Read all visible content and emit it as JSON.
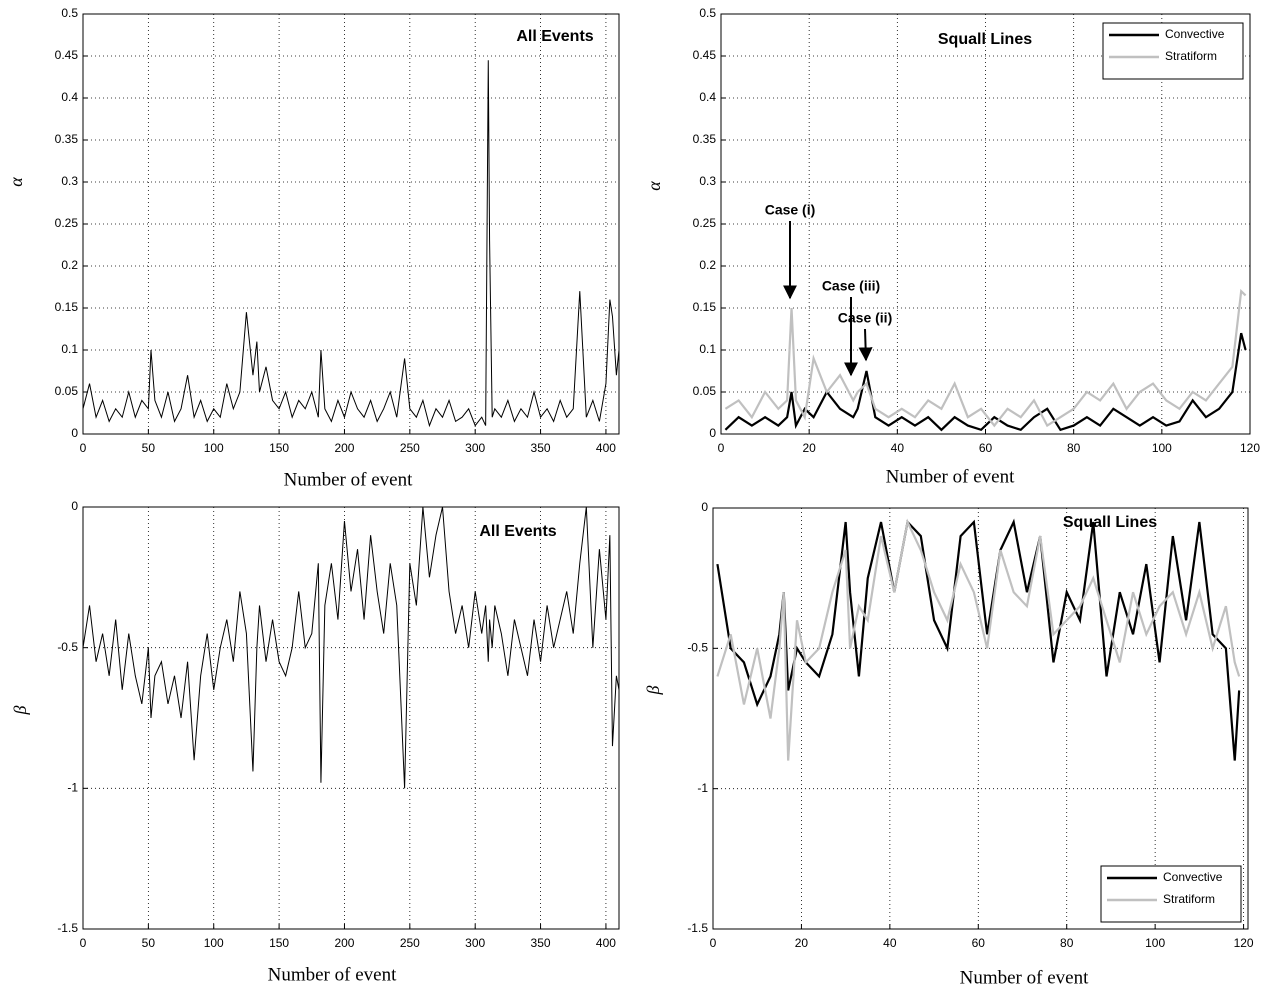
{
  "chart_data": [
    {
      "type": "line",
      "title": "All Events",
      "xlabel": "Number of event",
      "ylabel": "α",
      "color": "#000000",
      "x": [
        0,
        5,
        10,
        15,
        20,
        25,
        30,
        35,
        40,
        45,
        50,
        52,
        55,
        60,
        65,
        70,
        75,
        80,
        85,
        90,
        95,
        100,
        105,
        110,
        115,
        120,
        125,
        130,
        133,
        135,
        140,
        145,
        150,
        155,
        160,
        165,
        170,
        175,
        180,
        182,
        185,
        190,
        195,
        200,
        205,
        210,
        215,
        220,
        225,
        230,
        235,
        240,
        246,
        250,
        255,
        260,
        265,
        270,
        275,
        280,
        285,
        290,
        295,
        300,
        305,
        308,
        310,
        311,
        313,
        315,
        320,
        325,
        330,
        335,
        340,
        345,
        350,
        355,
        360,
        365,
        370,
        375,
        380,
        385,
        390,
        395,
        400,
        403,
        405,
        408,
        410
      ],
      "values": [
        0.03,
        0.06,
        0.02,
        0.04,
        0.015,
        0.03,
        0.02,
        0.05,
        0.02,
        0.04,
        0.03,
        0.1,
        0.04,
        0.02,
        0.05,
        0.015,
        0.03,
        0.07,
        0.02,
        0.04,
        0.015,
        0.03,
        0.02,
        0.06,
        0.03,
        0.05,
        0.145,
        0.07,
        0.11,
        0.05,
        0.08,
        0.04,
        0.03,
        0.05,
        0.02,
        0.04,
        0.03,
        0.05,
        0.02,
        0.1,
        0.03,
        0.015,
        0.04,
        0.02,
        0.05,
        0.03,
        0.02,
        0.04,
        0.015,
        0.03,
        0.05,
        0.02,
        0.09,
        0.03,
        0.02,
        0.04,
        0.01,
        0.03,
        0.02,
        0.04,
        0.015,
        0.02,
        0.03,
        0.01,
        0.02,
        0.01,
        0.445,
        0.23,
        0.02,
        0.03,
        0.02,
        0.04,
        0.015,
        0.03,
        0.02,
        0.05,
        0.02,
        0.03,
        0.015,
        0.04,
        0.02,
        0.03,
        0.17,
        0.02,
        0.04,
        0.015,
        0.06,
        0.16,
        0.14,
        0.07,
        0.1
      ],
      "xlim": [
        0,
        410
      ],
      "ylim": [
        0,
        0.5
      ],
      "xticks": [
        0,
        50,
        100,
        150,
        200,
        250,
        300,
        350,
        400
      ],
      "yticks": [
        0,
        0.05,
        0.1,
        0.15,
        0.2,
        0.25,
        0.3,
        0.35,
        0.4,
        0.45,
        0.5
      ],
      "grid": true
    },
    {
      "type": "line",
      "title": "Squall Lines",
      "xlabel": "Number of event",
      "ylabel": "α",
      "legend": "upper right",
      "annotations": [
        "Case (i)",
        "Case (iii)",
        "Case (ii)"
      ],
      "x": [
        1,
        4,
        7,
        10,
        13,
        15,
        16,
        17,
        19,
        21,
        24,
        27,
        30,
        31,
        33,
        35,
        38,
        41,
        44,
        47,
        50,
        53,
        56,
        59,
        62,
        65,
        68,
        71,
        74,
        77,
        80,
        83,
        86,
        89,
        92,
        95,
        98,
        101,
        104,
        107,
        110,
        113,
        116,
        118,
        119
      ],
      "series": [
        {
          "name": "Convective",
          "color": "#000000",
          "values": [
            0.005,
            0.02,
            0.01,
            0.02,
            0.01,
            0.02,
            0.05,
            0.01,
            0.03,
            0.02,
            0.05,
            0.03,
            0.02,
            0.03,
            0.075,
            0.02,
            0.01,
            0.02,
            0.01,
            0.02,
            0.005,
            0.02,
            0.01,
            0.005,
            0.02,
            0.01,
            0.005,
            0.02,
            0.03,
            0.005,
            0.01,
            0.02,
            0.01,
            0.03,
            0.02,
            0.01,
            0.02,
            0.01,
            0.015,
            0.04,
            0.02,
            0.03,
            0.05,
            0.12,
            0.1
          ]
        },
        {
          "name": "Stratiform",
          "color": "#c0c0c0",
          "values": [
            0.03,
            0.04,
            0.02,
            0.05,
            0.03,
            0.04,
            0.15,
            0.04,
            0.02,
            0.09,
            0.05,
            0.07,
            0.04,
            0.05,
            0.06,
            0.03,
            0.02,
            0.03,
            0.02,
            0.04,
            0.03,
            0.06,
            0.02,
            0.03,
            0.01,
            0.03,
            0.02,
            0.04,
            0.01,
            0.02,
            0.03,
            0.05,
            0.04,
            0.06,
            0.03,
            0.05,
            0.06,
            0.04,
            0.03,
            0.05,
            0.04,
            0.06,
            0.08,
            0.17,
            0.165
          ]
        }
      ],
      "xlim": [
        0,
        120
      ],
      "ylim": [
        0,
        0.5
      ],
      "xticks": [
        0,
        20,
        40,
        60,
        80,
        100,
        120
      ],
      "yticks": [
        0,
        0.05,
        0.1,
        0.15,
        0.2,
        0.25,
        0.3,
        0.35,
        0.4,
        0.45,
        0.5
      ],
      "grid": true
    },
    {
      "type": "line",
      "title": "All Events",
      "xlabel": "Number of event",
      "ylabel": "β",
      "color": "#000000",
      "x": [
        0,
        5,
        10,
        15,
        20,
        25,
        30,
        35,
        40,
        45,
        50,
        52,
        55,
        60,
        65,
        70,
        75,
        80,
        85,
        90,
        95,
        100,
        105,
        110,
        115,
        120,
        125,
        130,
        133,
        135,
        140,
        145,
        150,
        155,
        160,
        165,
        170,
        175,
        180,
        182,
        185,
        190,
        195,
        200,
        205,
        210,
        215,
        220,
        225,
        230,
        235,
        240,
        246,
        250,
        255,
        260,
        265,
        270,
        275,
        280,
        285,
        290,
        295,
        300,
        305,
        308,
        310,
        311,
        313,
        315,
        320,
        325,
        330,
        335,
        340,
        345,
        350,
        355,
        360,
        365,
        370,
        375,
        380,
        385,
        390,
        395,
        400,
        403,
        405,
        408,
        410
      ],
      "values": [
        -0.5,
        -0.35,
        -0.55,
        -0.45,
        -0.6,
        -0.4,
        -0.65,
        -0.45,
        -0.6,
        -0.7,
        -0.5,
        -0.75,
        -0.6,
        -0.55,
        -0.7,
        -0.6,
        -0.75,
        -0.55,
        -0.9,
        -0.6,
        -0.45,
        -0.65,
        -0.5,
        -0.4,
        -0.55,
        -0.3,
        -0.45,
        -0.94,
        -0.5,
        -0.35,
        -0.55,
        -0.4,
        -0.55,
        -0.6,
        -0.5,
        -0.3,
        -0.5,
        -0.45,
        -0.2,
        -0.98,
        -0.35,
        -0.2,
        -0.4,
        -0.05,
        -0.3,
        -0.15,
        -0.4,
        -0.1,
        -0.3,
        -0.45,
        -0.2,
        -0.35,
        -1.0,
        -0.2,
        -0.35,
        0,
        -0.25,
        -0.1,
        0,
        -0.3,
        -0.45,
        -0.35,
        -0.5,
        -0.3,
        -0.45,
        -0.35,
        -0.55,
        -0.4,
        -0.5,
        -0.35,
        -0.45,
        -0.6,
        -0.4,
        -0.5,
        -0.6,
        -0.4,
        -0.55,
        -0.35,
        -0.5,
        -0.4,
        -0.3,
        -0.45,
        -0.2,
        0,
        -0.5,
        -0.15,
        -0.4,
        -0.1,
        -0.85,
        -0.6,
        -0.65
      ],
      "xlim": [
        0,
        410
      ],
      "ylim": [
        -1.5,
        0
      ],
      "xticks": [
        0,
        50,
        100,
        150,
        200,
        250,
        300,
        350,
        400
      ],
      "yticks": [
        -1.5,
        -1,
        -0.5,
        0
      ],
      "grid": true
    },
    {
      "type": "line",
      "title": "Squall Lines",
      "xlabel": "Number of event",
      "ylabel": "β",
      "legend": "lower right",
      "x": [
        1,
        4,
        7,
        10,
        13,
        15,
        16,
        17,
        19,
        21,
        24,
        27,
        30,
        31,
        33,
        35,
        38,
        41,
        44,
        47,
        50,
        53,
        56,
        59,
        62,
        65,
        68,
        71,
        74,
        77,
        80,
        83,
        86,
        89,
        92,
        95,
        98,
        101,
        104,
        107,
        110,
        113,
        116,
        118,
        119
      ],
      "series": [
        {
          "name": "Convective",
          "color": "#000000",
          "values": [
            -0.2,
            -0.5,
            -0.55,
            -0.7,
            -0.6,
            -0.45,
            -0.3,
            -0.65,
            -0.5,
            -0.55,
            -0.6,
            -0.45,
            -0.05,
            -0.3,
            -0.6,
            -0.25,
            -0.05,
            -0.3,
            -0.05,
            -0.1,
            -0.4,
            -0.5,
            -0.1,
            -0.05,
            -0.45,
            -0.15,
            -0.05,
            -0.3,
            -0.1,
            -0.55,
            -0.3,
            -0.4,
            -0.05,
            -0.6,
            -0.3,
            -0.45,
            -0.2,
            -0.55,
            -0.1,
            -0.4,
            -0.05,
            -0.45,
            -0.5,
            -0.9,
            -0.65
          ]
        },
        {
          "name": "Stratiform",
          "color": "#c0c0c0",
          "values": [
            -0.6,
            -0.45,
            -0.7,
            -0.5,
            -0.75,
            -0.5,
            -0.3,
            -0.9,
            -0.4,
            -0.55,
            -0.5,
            -0.3,
            -0.15,
            -0.5,
            -0.35,
            -0.4,
            -0.1,
            -0.3,
            -0.05,
            -0.15,
            -0.3,
            -0.4,
            -0.2,
            -0.3,
            -0.5,
            -0.15,
            -0.3,
            -0.35,
            -0.1,
            -0.45,
            -0.4,
            -0.35,
            -0.25,
            -0.4,
            -0.55,
            -0.3,
            -0.45,
            -0.35,
            -0.3,
            -0.45,
            -0.3,
            -0.5,
            -0.35,
            -0.55,
            -0.6
          ]
        }
      ],
      "xlim": [
        0,
        121
      ],
      "ylim": [
        -1.5,
        0
      ],
      "xticks": [
        0,
        20,
        40,
        60,
        80,
        100,
        120
      ],
      "yticks": [
        -1.5,
        -1,
        -0.5,
        0
      ],
      "grid": true
    }
  ]
}
